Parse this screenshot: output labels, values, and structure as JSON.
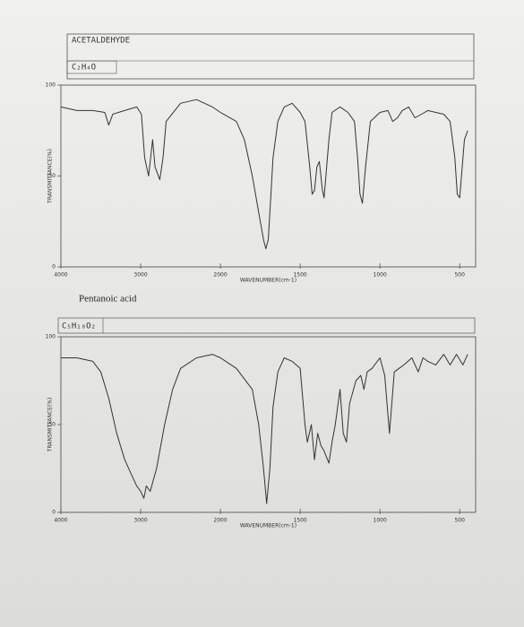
{
  "chart_data": [
    {
      "type": "line",
      "title": "ACETALDEHYDE",
      "formula": "C₂H₄O",
      "x_label": "WAVENUMBER(cm-1)",
      "y_label": "TRANSMITTANCE(%)",
      "xlim": [
        4000,
        400
      ],
      "xticks": [
        4000,
        3000,
        2000,
        1500,
        1000,
        500
      ],
      "ylim": [
        0,
        100
      ],
      "yticks": [
        0,
        50,
        100
      ],
      "color": "#333333",
      "x": [
        4000,
        3800,
        3600,
        3450,
        3400,
        3350,
        3200,
        3050,
        2990,
        2950,
        2900,
        2850,
        2820,
        2760,
        2720,
        2680,
        2500,
        2300,
        2100,
        2000,
        1900,
        1850,
        1800,
        1760,
        1730,
        1715,
        1700,
        1690,
        1670,
        1640,
        1600,
        1550,
        1500,
        1470,
        1440,
        1425,
        1410,
        1395,
        1380,
        1360,
        1350,
        1320,
        1300,
        1250,
        1200,
        1160,
        1140,
        1125,
        1110,
        1090,
        1060,
        1000,
        950,
        920,
        890,
        860,
        820,
        780,
        740,
        700,
        650,
        600,
        560,
        530,
        515,
        500,
        470,
        450
      ],
      "values": [
        88,
        86,
        86,
        85,
        78,
        84,
        86,
        88,
        84,
        60,
        50,
        70,
        55,
        48,
        60,
        80,
        90,
        92,
        88,
        85,
        80,
        70,
        50,
        30,
        15,
        10,
        15,
        30,
        60,
        80,
        88,
        90,
        85,
        80,
        55,
        40,
        42,
        55,
        58,
        42,
        38,
        70,
        85,
        88,
        85,
        80,
        60,
        40,
        35,
        55,
        80,
        85,
        86,
        80,
        82,
        86,
        88,
        82,
        84,
        86,
        85,
        84,
        80,
        60,
        40,
        38,
        70,
        75
      ]
    },
    {
      "type": "line",
      "title": "Pentanoic acid",
      "formula": "C₅H₁₀O₂",
      "x_label": "WAVENUMBER(cm-1)",
      "y_label": "TRANSMITTANCE(%)",
      "xlim": [
        4000,
        400
      ],
      "xticks": [
        4000,
        3000,
        2000,
        1500,
        1000,
        500
      ],
      "ylim": [
        0,
        100
      ],
      "yticks": [
        0,
        50,
        100
      ],
      "color": "#333333",
      "x": [
        4000,
        3800,
        3600,
        3500,
        3400,
        3300,
        3200,
        3100,
        3050,
        3000,
        2960,
        2930,
        2880,
        2800,
        2700,
        2600,
        2500,
        2300,
        2100,
        2000,
        1900,
        1800,
        1760,
        1730,
        1710,
        1690,
        1670,
        1640,
        1600,
        1550,
        1500,
        1470,
        1455,
        1430,
        1410,
        1390,
        1370,
        1350,
        1320,
        1300,
        1280,
        1250,
        1230,
        1210,
        1190,
        1150,
        1120,
        1100,
        1080,
        1050,
        1000,
        970,
        940,
        910,
        880,
        850,
        800,
        760,
        730,
        700,
        650,
        600,
        560,
        520,
        480,
        450
      ],
      "values": [
        88,
        88,
        86,
        80,
        65,
        45,
        30,
        20,
        15,
        12,
        8,
        15,
        12,
        25,
        50,
        70,
        82,
        88,
        90,
        88,
        82,
        70,
        50,
        25,
        5,
        25,
        60,
        80,
        88,
        86,
        82,
        50,
        40,
        50,
        30,
        45,
        38,
        35,
        28,
        40,
        50,
        70,
        45,
        40,
        62,
        75,
        78,
        70,
        80,
        82,
        88,
        78,
        45,
        80,
        82,
        84,
        88,
        80,
        88,
        86,
        84,
        90,
        84,
        90,
        84,
        90
      ]
    }
  ]
}
